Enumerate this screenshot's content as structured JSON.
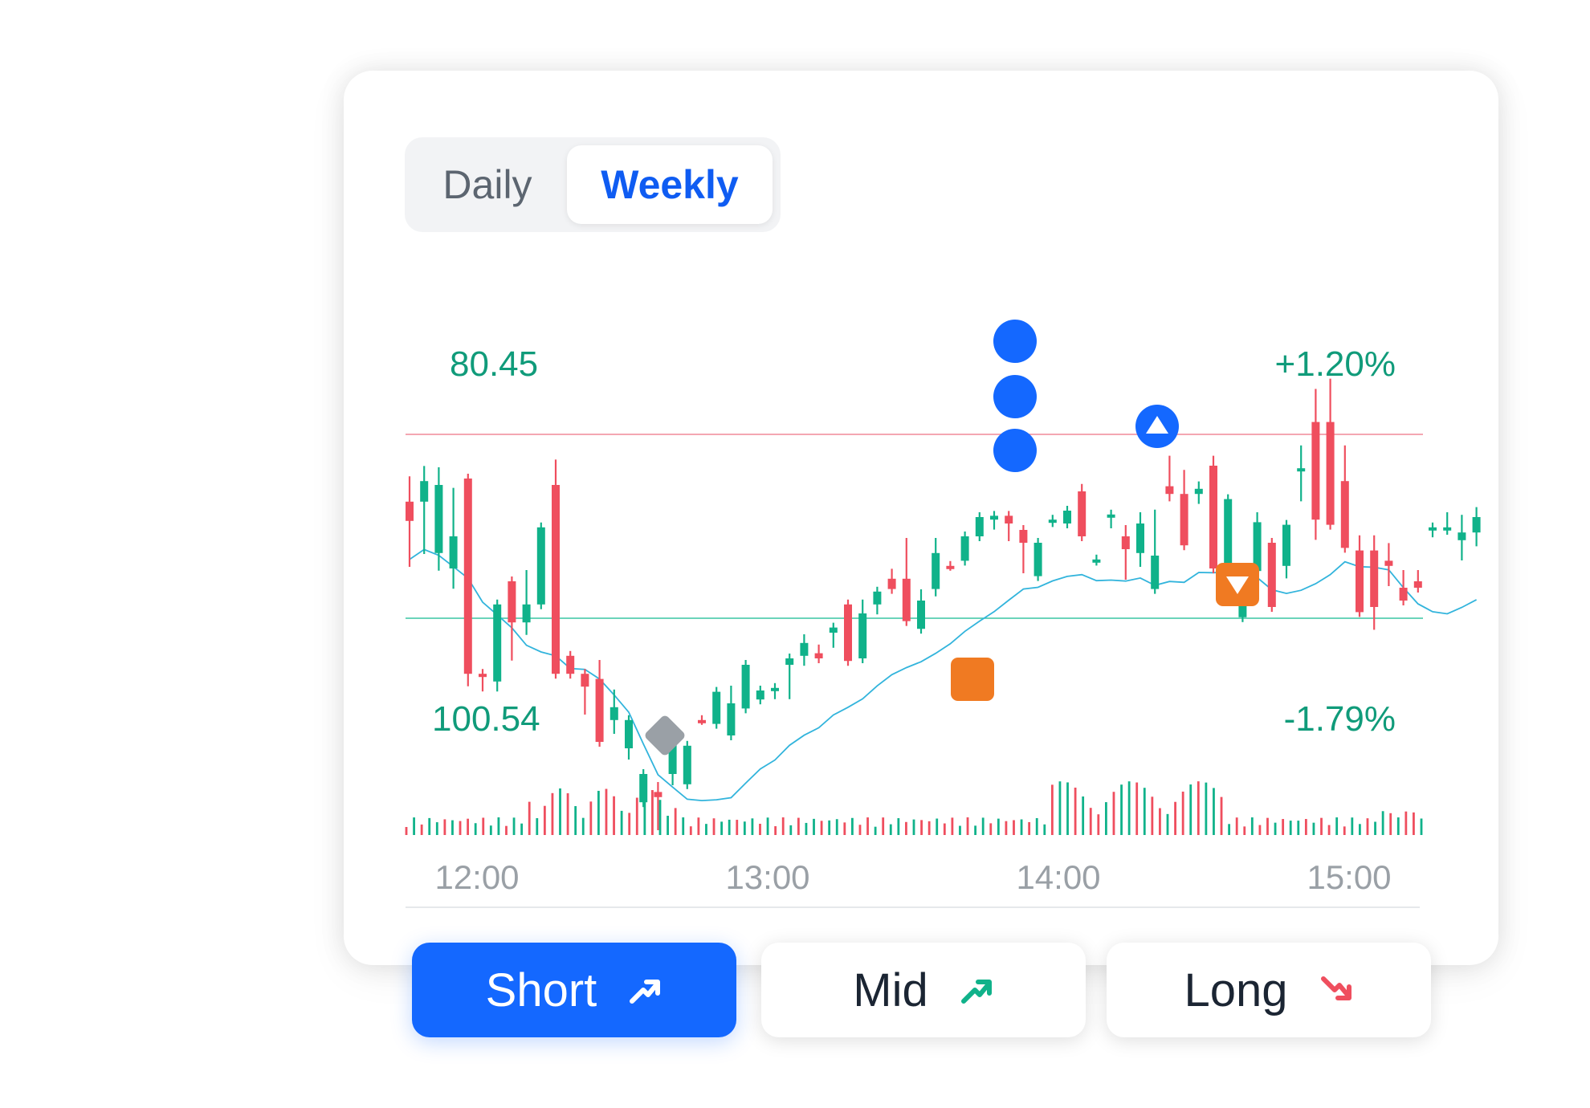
{
  "period_toggle": {
    "options": [
      "Daily",
      "Weekly"
    ],
    "selected": "Weekly"
  },
  "chart_data": {
    "type": "candlestick",
    "price_labels": {
      "upper": "80.45",
      "lower": "100.54"
    },
    "change_labels": {
      "upper": "+1.20%",
      "lower": "-1.79%"
    },
    "x_ticks": [
      "12:00",
      "13:00",
      "14:00",
      "15:00"
    ],
    "candles": [
      [
        128,
        143,
        175,
        112
      ],
      [
        128,
        112,
        165,
        104
      ],
      [
        168,
        115,
        178,
        105
      ],
      [
        180,
        155,
        192,
        121
      ],
      [
        110,
        262,
        268,
        110
      ],
      [
        262,
        262,
        272,
        262
      ],
      [
        268,
        208,
        272,
        210
      ],
      [
        190,
        222,
        248,
        190
      ],
      [
        222,
        208,
        228,
        185
      ],
      [
        208,
        148,
        208,
        148
      ],
      [
        115,
        262,
        232,
        99
      ],
      [
        248,
        262,
        262,
        248
      ],
      [
        262,
        272,
        290,
        262
      ],
      [
        266,
        315,
        300,
        255
      ],
      [
        298,
        288,
        305,
        278
      ],
      [
        320,
        298,
        325,
        298
      ],
      [
        362,
        340,
        362,
        340
      ],
      [
        354,
        358,
        380,
        350
      ],
      [
        340,
        305,
        345,
        318
      ],
      [
        348,
        318,
        348,
        318
      ],
      [
        298,
        298,
        298,
        298
      ],
      [
        301,
        276,
        301,
        276
      ],
      [
        310,
        285,
        305,
        275
      ],
      [
        289,
        255,
        289,
        255
      ],
      [
        282,
        275,
        282,
        275
      ],
      [
        275,
        273,
        278,
        273
      ],
      [
        255,
        250,
        278,
        250
      ],
      [
        248,
        238,
        252,
        235
      ],
      [
        246,
        250,
        248,
        243
      ],
      [
        230,
        226,
        238,
        226
      ],
      [
        208,
        252,
        252,
        208
      ],
      [
        250,
        215,
        250,
        208
      ],
      [
        208,
        198,
        212,
        198
      ],
      [
        188,
        196,
        190,
        184
      ],
      [
        188,
        221,
        220,
        160
      ],
      [
        227,
        205,
        227,
        200
      ],
      [
        196,
        168,
        198,
        160
      ],
      [
        178,
        178,
        178,
        178
      ],
      [
        174,
        155,
        174,
        155
      ],
      [
        155,
        140,
        155,
        140
      ],
      [
        142,
        139,
        146,
        139
      ],
      [
        139,
        145,
        155,
        139
      ],
      [
        150,
        160,
        180,
        150
      ],
      [
        186,
        160,
        186,
        160
      ],
      [
        144,
        142,
        144,
        144
      ],
      [
        145,
        135,
        145,
        135
      ],
      [
        120,
        155,
        155,
        118
      ],
      [
        174,
        173,
        174,
        173
      ],
      [
        140,
        138,
        145,
        138
      ],
      [
        155,
        165,
        185,
        150
      ],
      [
        168,
        145,
        175,
        140
      ],
      [
        196,
        170,
        188,
        138
      ],
      [
        116,
        122,
        124,
        96
      ],
      [
        122,
        162,
        160,
        107
      ],
      [
        122,
        118,
        126,
        116
      ],
      [
        100,
        180,
        180,
        96
      ],
      [
        185,
        126,
        142,
        126
      ],
      [
        218,
        198,
        218,
        198
      ],
      [
        182,
        144,
        184,
        140
      ],
      [
        160,
        210,
        210,
        160
      ],
      [
        178,
        146,
        184,
        146
      ],
      [
        104,
        102,
        124,
        88
      ],
      [
        66,
        142,
        154,
        44
      ],
      [
        66,
        146,
        145,
        36
      ],
      [
        112,
        164,
        164,
        88
      ],
      [
        166,
        214,
        214,
        158
      ],
      [
        166,
        210,
        224,
        158
      ],
      [
        174,
        178,
        190,
        164
      ],
      [
        195,
        205,
        205,
        185
      ],
      [
        190,
        195,
        195,
        185
      ],
      [
        150,
        148,
        152,
        150
      ],
      [
        150,
        148,
        142,
        140
      ],
      [
        158,
        152,
        170,
        142
      ],
      [
        152,
        140,
        159,
        136
      ]
    ],
    "volume_bars": 133,
    "series_note": ""
  },
  "signals": {
    "dots": 3,
    "buy_marker": "triangle-up",
    "sell_marker": "triangle-down",
    "square_marker": "square",
    "diamond_marker": "diamond"
  },
  "term_buttons": [
    {
      "label": "Short",
      "trend": "up",
      "active": true
    },
    {
      "label": "Mid",
      "trend": "up",
      "active": false
    },
    {
      "label": "Long",
      "trend": "down",
      "active": false
    }
  ],
  "colors": {
    "up": "#10b28a",
    "down": "#ef4e5e",
    "accent": "#1468ff",
    "ma_line": "#32b4dc",
    "orange": "#f07a22",
    "gray_marker": "#9aa0a6"
  }
}
